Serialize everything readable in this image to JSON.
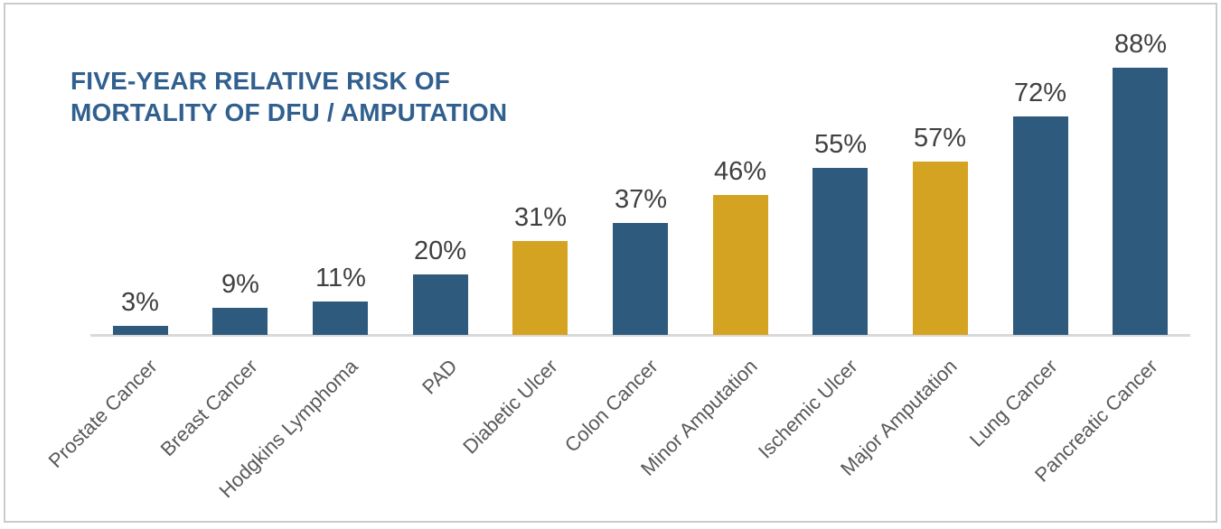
{
  "chart_data": {
    "type": "bar",
    "title_lines": [
      "FIVE-YEAR RELATIVE RISK OF",
      "MORTALITY OF DFU / AMPUTATION"
    ],
    "title_full": "FIVE-YEAR RELATIVE RISK OF MORTALITY OF DFU / AMPUTATION",
    "value_suffix": "%",
    "xlabel": "",
    "ylabel": "",
    "ylim": [
      0,
      95
    ],
    "grid": false,
    "legend": "none",
    "colors": {
      "bar_default": "#2E5A7D",
      "bar_highlight": "#D4A321",
      "title_text": "#31608F",
      "value_label_text": "#404040",
      "category_label_text": "#595959",
      "axis_line": "#D9D9D9"
    },
    "categories": [
      {
        "label": "Prostate Cancer",
        "value": 3,
        "highlight": false
      },
      {
        "label": "Breast Cancer",
        "value": 9,
        "highlight": false
      },
      {
        "label": "Hodgkins Lymphoma",
        "value": 11,
        "highlight": false
      },
      {
        "label": "PAD",
        "value": 20,
        "highlight": false
      },
      {
        "label": "Diabetic Ulcer",
        "value": 31,
        "highlight": true
      },
      {
        "label": "Colon Cancer",
        "value": 37,
        "highlight": false
      },
      {
        "label": "Minor Amputation",
        "value": 46,
        "highlight": true
      },
      {
        "label": "Ischemic Ulcer",
        "value": 55,
        "highlight": false
      },
      {
        "label": "Major Amputation",
        "value": 57,
        "highlight": true
      },
      {
        "label": "Lung Cancer",
        "value": 72,
        "highlight": false
      },
      {
        "label": "Pancreatic Cancer",
        "value": 88,
        "highlight": false
      }
    ]
  }
}
